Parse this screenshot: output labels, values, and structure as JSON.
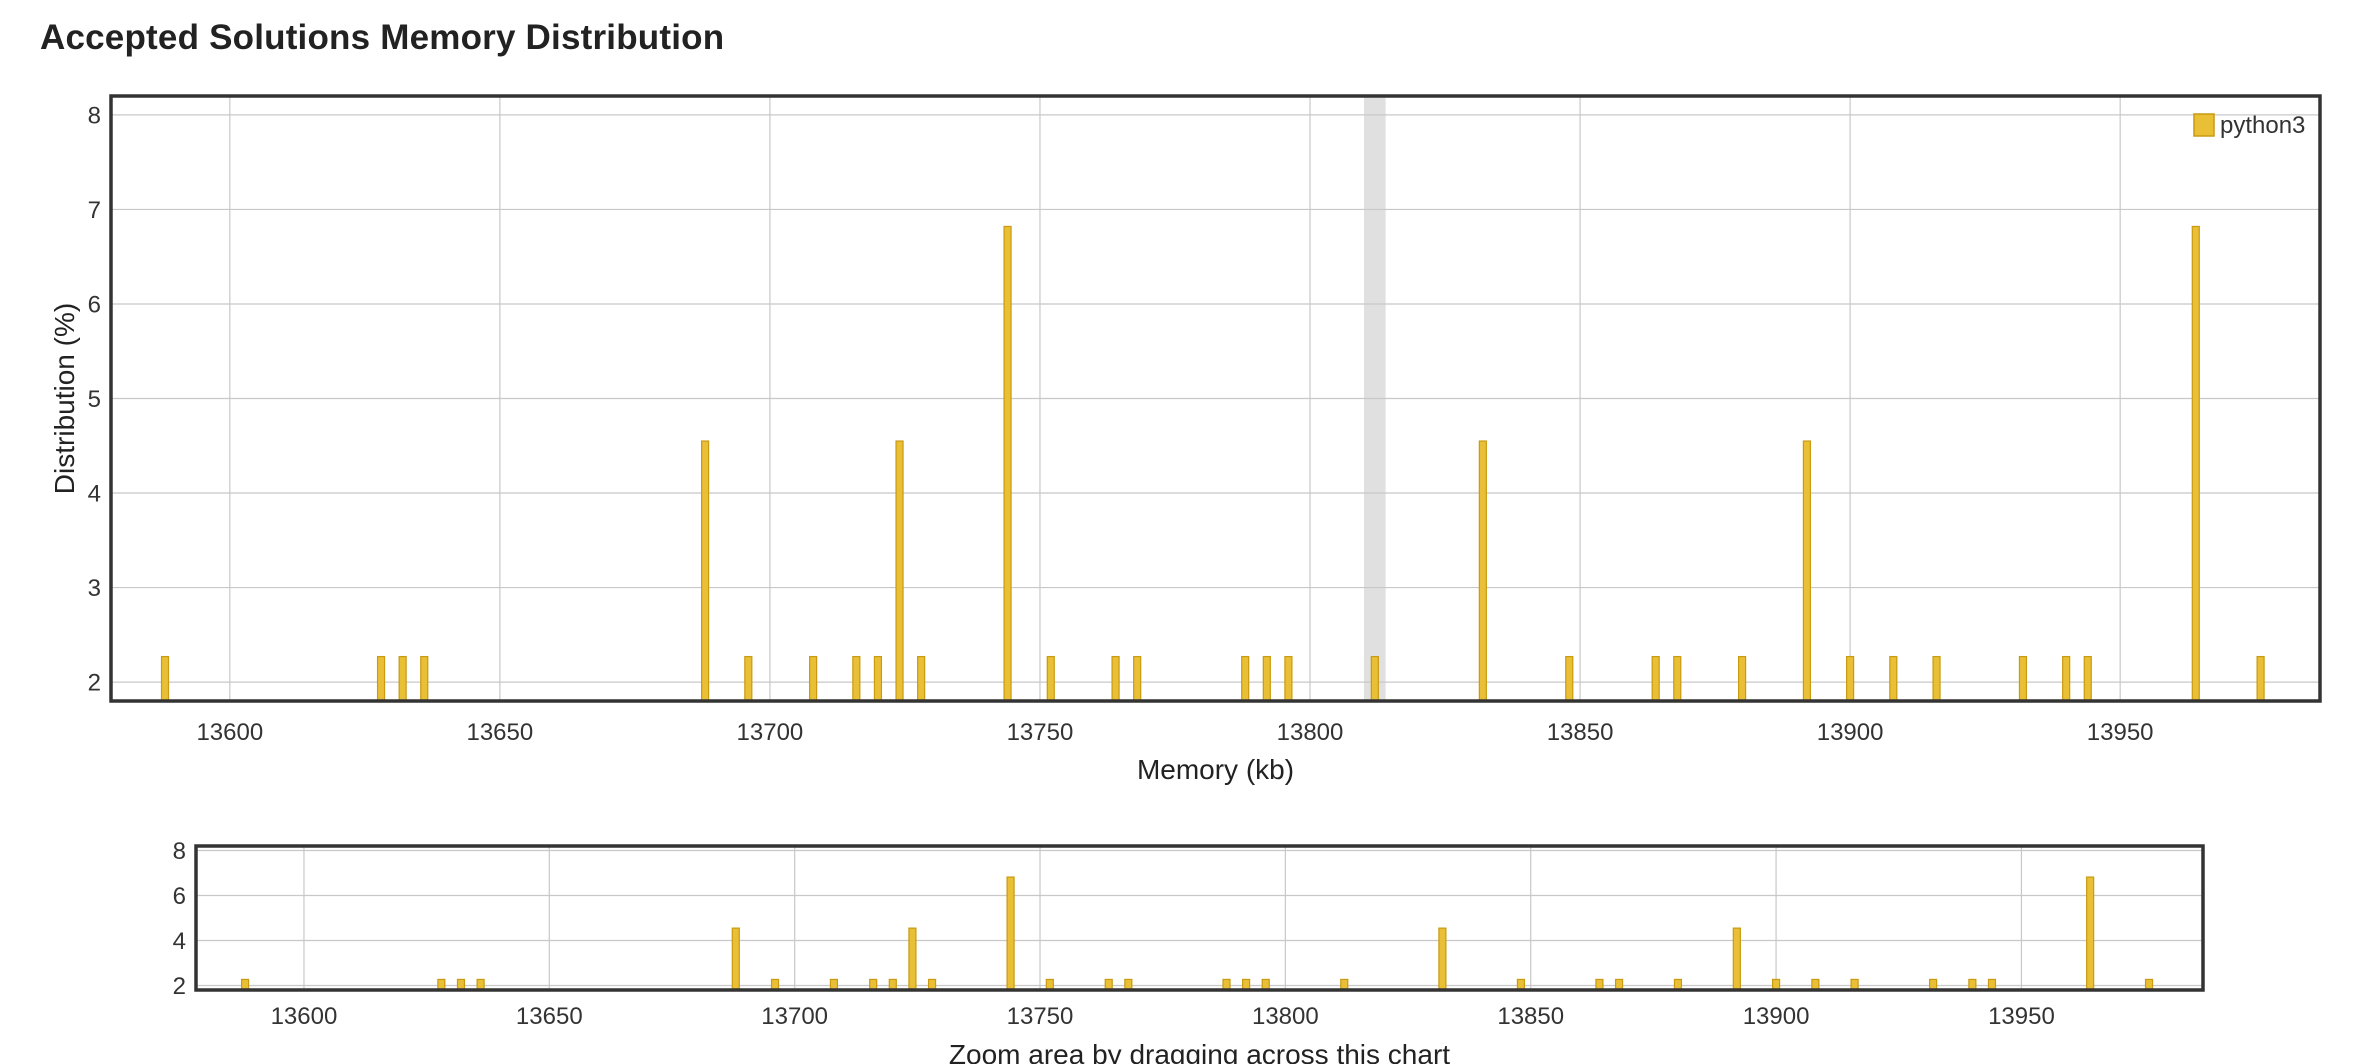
{
  "title": "Accepted Solutions Memory Distribution",
  "colors": {
    "bar_fill": "#e9bf35",
    "bar_stroke": "#c99a12",
    "grid": "#c8c8c8",
    "frame": "#333333",
    "highlight": "#e0e0e0"
  },
  "chart_data": [
    {
      "type": "bar",
      "title": "",
      "xlabel": "Memory (kb)",
      "ylabel": "Distribution (%)",
      "xlim": [
        13578,
        13987
      ],
      "ylim": [
        1.8,
        8.2
      ],
      "xticks": [
        13600,
        13650,
        13700,
        13750,
        13800,
        13850,
        13900,
        13950
      ],
      "yticks": [
        2,
        3,
        4,
        5,
        6,
        7,
        8
      ],
      "grid": true,
      "legend_position": "top-right",
      "highlight_band": [
        13810,
        13814
      ],
      "series": [
        {
          "name": "python3",
          "x": [
            13588,
            13628,
            13632,
            13636,
            13688,
            13696,
            13708,
            13716,
            13720,
            13724,
            13728,
            13744,
            13752,
            13764,
            13768,
            13788,
            13792,
            13796,
            13812,
            13832,
            13848,
            13864,
            13868,
            13880,
            13892,
            13900,
            13908,
            13916,
            13932,
            13940,
            13944,
            13964,
            13976
          ],
          "y": [
            2.27,
            2.27,
            2.27,
            2.27,
            4.55,
            2.27,
            2.27,
            2.27,
            2.27,
            4.55,
            2.27,
            6.82,
            2.27,
            2.27,
            2.27,
            2.27,
            2.27,
            2.27,
            2.27,
            4.55,
            2.27,
            2.27,
            2.27,
            2.27,
            4.55,
            2.27,
            2.27,
            2.27,
            2.27,
            2.27,
            2.27,
            6.82,
            2.27
          ]
        }
      ]
    },
    {
      "type": "bar",
      "title": "",
      "xlabel": "Zoom area by dragging across this chart",
      "ylabel": "",
      "xlim": [
        13578,
        13987
      ],
      "ylim": [
        1.8,
        8.2
      ],
      "xticks": [
        13600,
        13650,
        13700,
        13750,
        13800,
        13850,
        13900,
        13950
      ],
      "yticks": [
        2,
        4,
        6,
        8
      ],
      "grid": true,
      "series": [
        {
          "x": [
            13588,
            13628,
            13632,
            13636,
            13688,
            13696,
            13708,
            13716,
            13720,
            13724,
            13728,
            13744,
            13752,
            13764,
            13768,
            13788,
            13792,
            13796,
            13812,
            13832,
            13848,
            13864,
            13868,
            13880,
            13892,
            13900,
            13908,
            13916,
            13932,
            13940,
            13944,
            13964,
            13976
          ],
          "y": [
            2.27,
            2.27,
            2.27,
            2.27,
            4.55,
            2.27,
            2.27,
            2.27,
            2.27,
            4.55,
            2.27,
            6.82,
            2.27,
            2.27,
            2.27,
            2.27,
            2.27,
            2.27,
            2.27,
            4.55,
            2.27,
            2.27,
            2.27,
            2.27,
            4.55,
            2.27,
            2.27,
            2.27,
            2.27,
            2.27,
            2.27,
            6.82,
            2.27
          ]
        }
      ]
    }
  ]
}
